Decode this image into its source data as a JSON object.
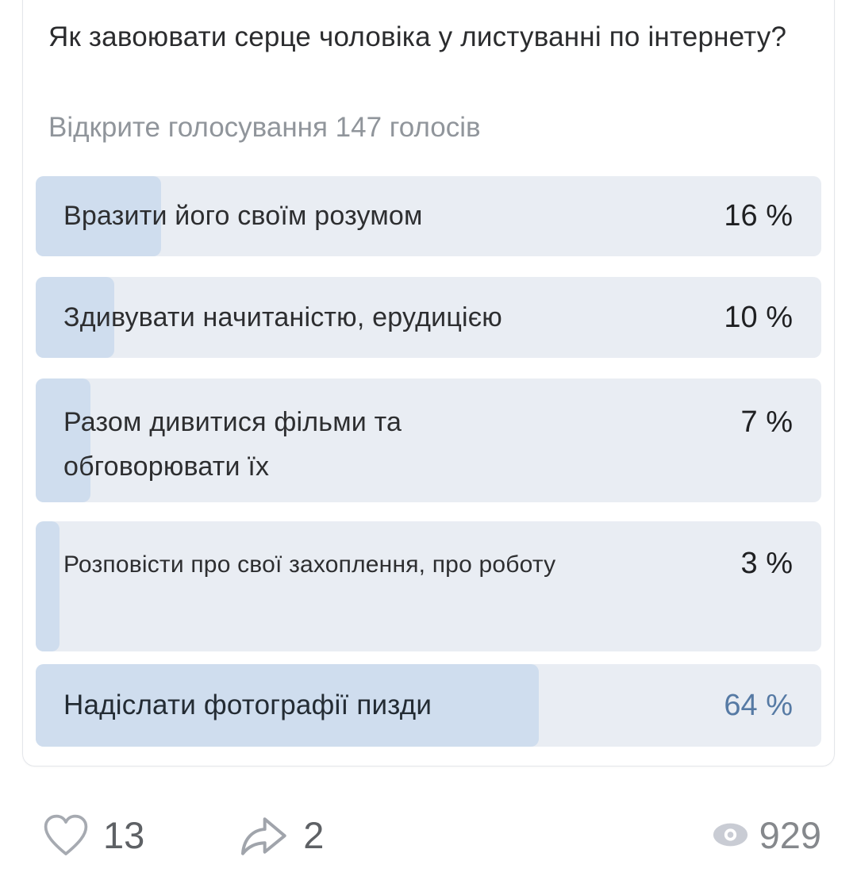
{
  "poll": {
    "question": "Як завоювати серце чоловіка у листуванні по інтернету?",
    "meta": "Відкрите голосування 147 голосів",
    "options": [
      {
        "line1": "Вразити його своїм розумом",
        "line2": "",
        "percent_label": "16 %",
        "percent": 16,
        "highlight": false
      },
      {
        "line1": "Здивувати начитаністю, ерудицією",
        "line2": "",
        "percent_label": "10 %",
        "percent": 10,
        "highlight": false
      },
      {
        "line1": "Разом дивитися фільми та",
        "line2": "обговорювати їх",
        "percent_label": "7 %",
        "percent": 7,
        "highlight": false
      },
      {
        "line1": "Розповісти про свої захоплення, про роботу",
        "line2": "",
        "percent_label": "3 %",
        "percent": 3,
        "highlight": false
      },
      {
        "line1": "Надіслати фотографії пизди",
        "line2": "",
        "percent_label": "64 %",
        "percent": 64,
        "highlight": true
      }
    ]
  },
  "actions": {
    "likes": "13",
    "shares": "2",
    "views": "929"
  },
  "icons": {
    "like": "heart-outline-icon",
    "share": "share-arrow-icon",
    "views": "eye-icon"
  },
  "colors": {
    "bar_track": "#e9edf3",
    "bar_fill": "#cfddee",
    "percent_default": "#1f2022",
    "percent_highlight": "#567aa4",
    "question_text": "#2b2c2e",
    "meta_text": "#90959b",
    "action_count": "#5e6165",
    "views_count": "#85888c"
  }
}
